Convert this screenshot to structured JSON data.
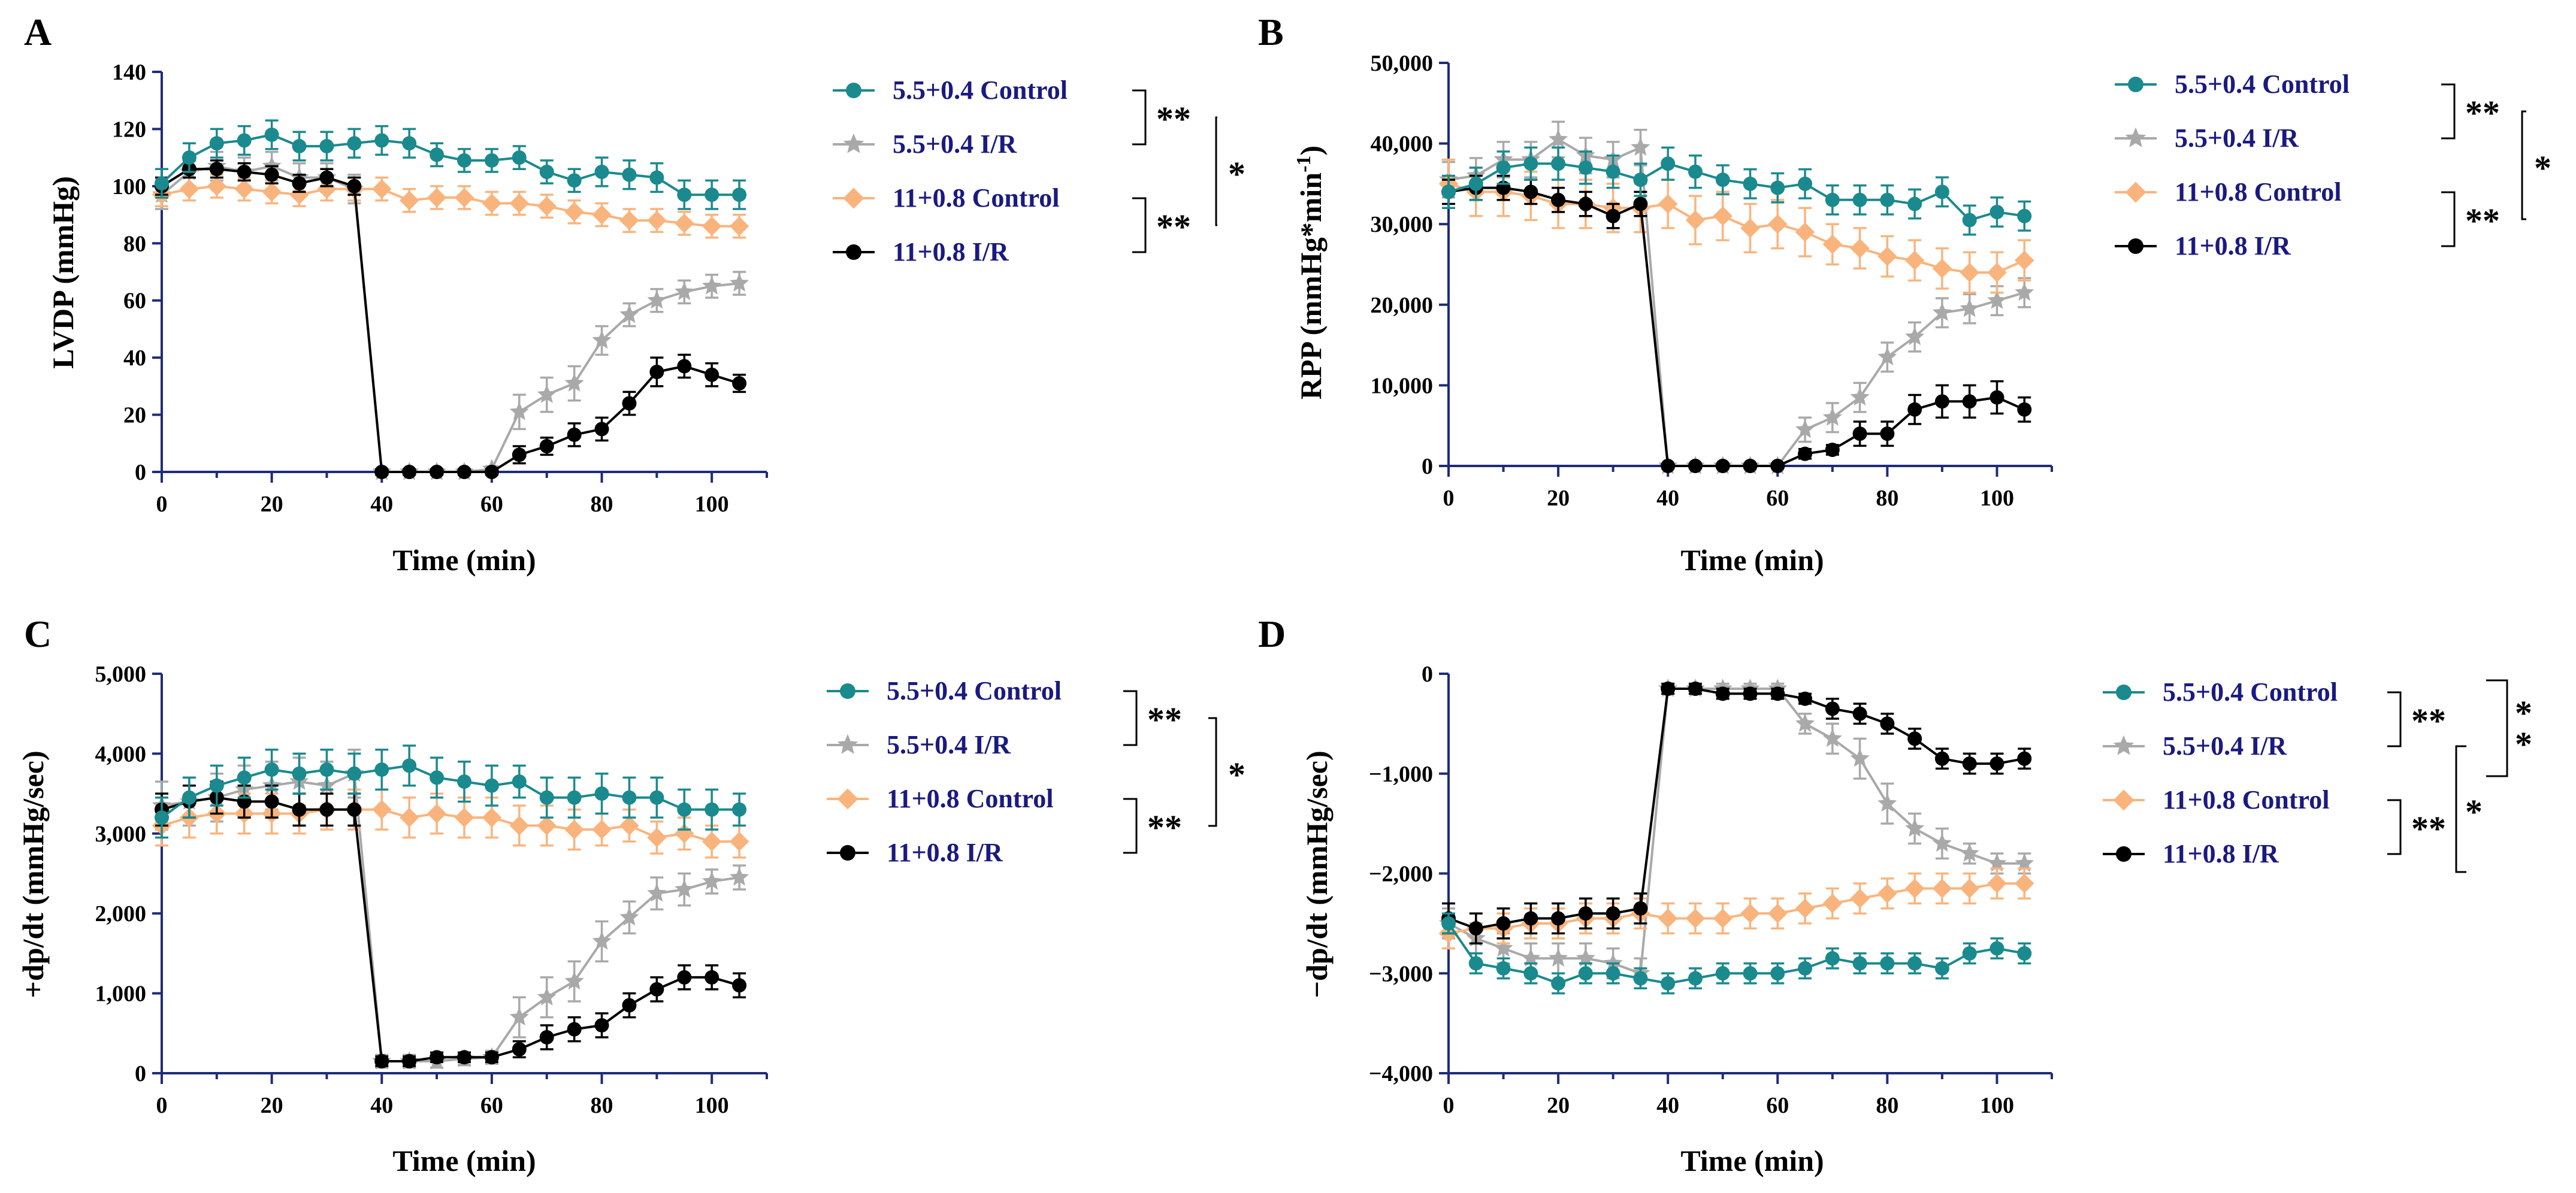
{
  "series_styles": [
    {
      "color": "#1a8a8e",
      "marker": "circle"
    },
    {
      "color": "#a9a9a9",
      "marker": "star"
    },
    {
      "color": "#f9b47d",
      "marker": "diamond"
    },
    {
      "color": "#000000",
      "marker": "circle"
    }
  ],
  "chart_data": [
    {
      "panel": "A",
      "type": "line",
      "title": "",
      "xlabel": "Time (min)",
      "ylabel": "LVDP (mmHg)",
      "xlim": [
        0,
        110
      ],
      "ylim": [
        0,
        140
      ],
      "xticks": [
        0,
        20,
        40,
        60,
        80,
        100
      ],
      "yticks": [
        0,
        20,
        40,
        60,
        80,
        100,
        120,
        140
      ],
      "ytick_labels": [
        "0",
        "20",
        "40",
        "60",
        "80",
        "100",
        "120",
        "140"
      ],
      "x": [
        0,
        5,
        10,
        15,
        20,
        25,
        30,
        35,
        40,
        45,
        50,
        55,
        60,
        65,
        70,
        75,
        80,
        85,
        90,
        95,
        100,
        105
      ],
      "series": [
        {
          "name": "5.5+0.4 Control",
          "values": [
            101,
            110,
            115,
            116,
            118,
            114,
            114,
            115,
            116,
            115,
            111,
            109,
            109,
            110,
            105,
            102,
            105,
            104,
            103,
            97,
            97,
            97
          ],
          "errors": [
            5,
            5,
            5,
            5,
            5,
            5,
            5,
            5,
            5,
            5,
            4,
            4,
            4,
            4,
            4,
            4,
            5,
            5,
            5,
            5,
            5,
            5
          ]
        },
        {
          "name": "5.5+0.4 I/R",
          "values": [
            97,
            105,
            107,
            105,
            107,
            103,
            103,
            99,
            0,
            0,
            0,
            0,
            1,
            21,
            27,
            31,
            46,
            55,
            60,
            63,
            65,
            66
          ],
          "errors": [
            5,
            5,
            5,
            5,
            5,
            5,
            5,
            5,
            1,
            1,
            1,
            1,
            1,
            6,
            6,
            6,
            5,
            4,
            4,
            4,
            4,
            4
          ]
        },
        {
          "name": "11+0.8 Control",
          "values": [
            97,
            99,
            100,
            99,
            98,
            97,
            99,
            99,
            99,
            95,
            96,
            96,
            94,
            94,
            93,
            91,
            90,
            88,
            88,
            87,
            86,
            86
          ],
          "errors": [
            4,
            4,
            4,
            4,
            4,
            4,
            4,
            4,
            4,
            4,
            4,
            4,
            4,
            4,
            4,
            4,
            4,
            4,
            4,
            4,
            4,
            4
          ]
        },
        {
          "name": "11+0.8 I/R",
          "values": [
            100,
            106,
            106,
            105,
            104,
            101,
            103,
            100,
            0,
            0,
            0,
            0,
            0,
            6,
            9,
            13,
            15,
            24,
            35,
            37,
            34,
            31
          ],
          "errors": [
            3,
            3,
            3,
            3,
            3,
            3,
            3,
            3,
            1,
            1,
            1,
            1,
            1,
            3,
            3,
            4,
            4,
            4,
            5,
            4,
            4,
            3
          ]
        }
      ],
      "legend": [
        "5.5+0.4 Control",
        "5.5+0.4 I/R",
        "11+0.8 Control",
        "11+0.8 I/R"
      ],
      "significance": [
        {
          "between": "5.5+0.4 Control vs 5.5+0.4 I/R",
          "label": "**"
        },
        {
          "between": "11+0.8 Control vs 11+0.8 I/R",
          "label": "**"
        },
        {
          "between": "5.5+0.4 I/R vs 11+0.8 I/R",
          "label": "*"
        }
      ]
    },
    {
      "panel": "B",
      "type": "line",
      "title": "",
      "xlabel": "Time (min)",
      "ylabel": "RPP (mmHg*min⁻¹)",
      "xlim": [
        0,
        110
      ],
      "ylim": [
        0,
        50000
      ],
      "xticks": [
        0,
        20,
        40,
        60,
        80,
        100
      ],
      "yticks": [
        0,
        10000,
        20000,
        30000,
        40000,
        50000
      ],
      "ytick_labels": [
        "0",
        "10,000",
        "20,000",
        "30,000",
        "40,000",
        "50,000"
      ],
      "x": [
        0,
        5,
        10,
        15,
        20,
        25,
        30,
        35,
        40,
        45,
        50,
        55,
        60,
        65,
        70,
        75,
        80,
        85,
        90,
        95,
        100,
        105
      ],
      "series": [
        {
          "name": "5.5+0.4 Control",
          "values": [
            34000,
            35000,
            37000,
            37500,
            37500,
            37000,
            36500,
            35500,
            37500,
            36500,
            35500,
            35000,
            34500,
            35000,
            33000,
            33000,
            33000,
            32500,
            34000,
            30500,
            31500,
            31000
          ],
          "errors": [
            2000,
            2000,
            2000,
            2000,
            2000,
            2000,
            2000,
            2000,
            2000,
            2000,
            1800,
            1800,
            1800,
            1800,
            1800,
            1800,
            1800,
            1800,
            1800,
            1800,
            1800,
            1800
          ]
        },
        {
          "name": "5.5+0.4 I/R",
          "values": [
            35500,
            36000,
            38000,
            38000,
            40500,
            38500,
            38000,
            39500,
            0,
            0,
            0,
            0,
            0,
            4500,
            6000,
            8500,
            13500,
            16000,
            19000,
            19500,
            20500,
            21500
          ],
          "errors": [
            2200,
            2200,
            2200,
            2200,
            2200,
            2200,
            2200,
            2200,
            300,
            300,
            300,
            300,
            300,
            1500,
            1800,
            1800,
            1800,
            1800,
            1800,
            1800,
            1800,
            1800
          ]
        },
        {
          "name": "11+0.8 Control",
          "values": [
            35000,
            34000,
            34000,
            33500,
            32500,
            32500,
            32000,
            32000,
            32500,
            30500,
            31000,
            29500,
            30000,
            29000,
            27500,
            27000,
            26000,
            25500,
            24500,
            24000,
            24000,
            25500
          ],
          "errors": [
            3000,
            3000,
            3000,
            3000,
            3000,
            3000,
            3000,
            3000,
            3000,
            3000,
            3000,
            3000,
            3000,
            3000,
            2500,
            2500,
            2500,
            2500,
            2500,
            2500,
            2500,
            2500
          ]
        },
        {
          "name": "11+0.8 I/R",
          "values": [
            34000,
            34500,
            34500,
            34000,
            33000,
            32500,
            31000,
            32500,
            0,
            0,
            0,
            0,
            0,
            1500,
            2000,
            4000,
            4000,
            7000,
            8000,
            8000,
            8500,
            7000
          ],
          "errors": [
            1500,
            1500,
            1500,
            1500,
            1500,
            1500,
            1500,
            1500,
            200,
            200,
            200,
            200,
            200,
            600,
            600,
            1500,
            1500,
            1800,
            2000,
            2000,
            2000,
            1500
          ]
        }
      ],
      "legend": [
        "5.5+0.4 Control",
        "5.5+0.4 I/R",
        "11+0.8 Control",
        "11+0.8 I/R"
      ],
      "significance": [
        {
          "between": "5.5+0.4 Control vs 5.5+0.4 I/R",
          "label": "**"
        },
        {
          "between": "11+0.8 Control vs 11+0.8 I/R",
          "label": "**"
        },
        {
          "between": "5.5+0.4 I/R vs 11+0.8 I/R",
          "label": "*"
        }
      ]
    },
    {
      "panel": "C",
      "type": "line",
      "title": "",
      "xlabel": "Time (min)",
      "ylabel": "+dp/dt (mmHg/sec)",
      "xlim": [
        0,
        110
      ],
      "ylim": [
        0,
        5000
      ],
      "xticks": [
        0,
        20,
        40,
        60,
        80,
        100
      ],
      "yticks": [
        0,
        1000,
        2000,
        3000,
        4000,
        5000
      ],
      "ytick_labels": [
        "0",
        "1,000",
        "2,000",
        "3,000",
        "4,000",
        "5,000"
      ],
      "x": [
        0,
        5,
        10,
        15,
        20,
        25,
        30,
        35,
        40,
        45,
        50,
        55,
        60,
        65,
        70,
        75,
        80,
        85,
        90,
        95,
        100,
        105
      ],
      "series": [
        {
          "name": "5.5+0.4 Control",
          "values": [
            3200,
            3450,
            3600,
            3700,
            3800,
            3750,
            3800,
            3750,
            3800,
            3850,
            3700,
            3650,
            3600,
            3650,
            3450,
            3450,
            3500,
            3450,
            3450,
            3300,
            3300,
            3300
          ],
          "errors": [
            250,
            250,
            250,
            250,
            250,
            250,
            250,
            250,
            250,
            250,
            250,
            250,
            250,
            200,
            250,
            250,
            250,
            250,
            250,
            250,
            250,
            200
          ]
        },
        {
          "name": "5.5+0.4 I/R",
          "values": [
            3350,
            3400,
            3450,
            3550,
            3600,
            3650,
            3600,
            3750,
            150,
            150,
            150,
            180,
            200,
            700,
            950,
            1150,
            1650,
            1950,
            2250,
            2300,
            2400,
            2450
          ],
          "errors": [
            300,
            300,
            300,
            300,
            300,
            300,
            300,
            300,
            80,
            80,
            80,
            80,
            80,
            250,
            250,
            250,
            250,
            200,
            200,
            200,
            150,
            150
          ]
        },
        {
          "name": "11+0.8 Control",
          "values": [
            3100,
            3200,
            3250,
            3250,
            3250,
            3250,
            3300,
            3300,
            3300,
            3200,
            3250,
            3200,
            3200,
            3100,
            3100,
            3050,
            3050,
            3100,
            2950,
            3000,
            2900,
            2900
          ],
          "errors": [
            250,
            250,
            250,
            250,
            250,
            250,
            250,
            250,
            250,
            250,
            250,
            250,
            250,
            250,
            250,
            250,
            200,
            200,
            200,
            200,
            200,
            200
          ]
        },
        {
          "name": "11+0.8 I/R",
          "values": [
            3300,
            3400,
            3450,
            3400,
            3400,
            3300,
            3300,
            3300,
            150,
            150,
            200,
            200,
            200,
            300,
            450,
            550,
            600,
            850,
            1050,
            1200,
            1200,
            1100
          ],
          "errors": [
            200,
            200,
            200,
            200,
            200,
            200,
            200,
            200,
            60,
            60,
            60,
            60,
            60,
            100,
            150,
            150,
            150,
            150,
            150,
            150,
            150,
            150
          ]
        }
      ],
      "legend": [
        "5.5+0.4 Control",
        "5.5+0.4 I/R",
        "11+0.8 Control",
        "11+0.8 I/R"
      ],
      "significance": [
        {
          "between": "5.5+0.4 Control vs 5.5+0.4 I/R",
          "label": "**"
        },
        {
          "between": "11+0.8 Control vs 11+0.8 I/R",
          "label": "**"
        },
        {
          "between": "5.5+0.4 I/R vs 11+0.8 I/R",
          "label": "*"
        }
      ]
    },
    {
      "panel": "D",
      "type": "line",
      "title": "",
      "xlabel": "Time (min)",
      "ylabel": "−dp/dt (mmHg/sec)",
      "xlim": [
        0,
        110
      ],
      "ylim": [
        -4000,
        0
      ],
      "xticks": [
        0,
        20,
        40,
        60,
        80,
        100
      ],
      "yticks": [
        -4000,
        -3000,
        -2000,
        -1000,
        0
      ],
      "ytick_labels": [
        "−4,000",
        "−3,000",
        "−2,000",
        "−1,000",
        "0"
      ],
      "x": [
        0,
        5,
        10,
        15,
        20,
        25,
        30,
        35,
        40,
        45,
        50,
        55,
        60,
        65,
        70,
        75,
        80,
        85,
        90,
        95,
        100,
        105
      ],
      "series": [
        {
          "name": "5.5+0.4 Control",
          "values": [
            -2500,
            -2900,
            -2950,
            -3000,
            -3100,
            -3000,
            -3000,
            -3050,
            -3100,
            -3050,
            -3000,
            -3000,
            -3000,
            -2950,
            -2850,
            -2900,
            -2900,
            -2900,
            -2950,
            -2800,
            -2750,
            -2800
          ],
          "errors": [
            100,
            100,
            100,
            100,
            100,
            100,
            100,
            100,
            100,
            100,
            100,
            100,
            100,
            100,
            100,
            100,
            100,
            100,
            100,
            100,
            100,
            100
          ]
        },
        {
          "name": "5.5+0.4 I/R",
          "values": [
            -2500,
            -2650,
            -2750,
            -2850,
            -2850,
            -2850,
            -2900,
            -3000,
            -150,
            -150,
            -150,
            -150,
            -150,
            -500,
            -650,
            -850,
            -1300,
            -1550,
            -1700,
            -1800,
            -1900,
            -1900
          ],
          "errors": [
            150,
            150,
            150,
            150,
            150,
            150,
            150,
            150,
            50,
            50,
            50,
            50,
            50,
            100,
            150,
            200,
            200,
            150,
            150,
            100,
            100,
            100
          ]
        },
        {
          "name": "11+0.8 Control",
          "values": [
            -2600,
            -2550,
            -2550,
            -2500,
            -2500,
            -2450,
            -2450,
            -2400,
            -2450,
            -2450,
            -2450,
            -2400,
            -2400,
            -2350,
            -2300,
            -2250,
            -2200,
            -2150,
            -2150,
            -2150,
            -2100,
            -2100
          ],
          "errors": [
            150,
            150,
            150,
            150,
            150,
            150,
            150,
            150,
            150,
            150,
            150,
            150,
            150,
            150,
            150,
            150,
            150,
            150,
            150,
            150,
            150,
            150
          ]
        },
        {
          "name": "11+0.8 I/R",
          "values": [
            -2450,
            -2550,
            -2500,
            -2450,
            -2450,
            -2400,
            -2400,
            -2350,
            -150,
            -150,
            -200,
            -200,
            -200,
            -250,
            -350,
            -400,
            -500,
            -650,
            -850,
            -900,
            -900,
            -850
          ],
          "errors": [
            150,
            150,
            150,
            150,
            150,
            150,
            150,
            150,
            50,
            50,
            50,
            50,
            50,
            50,
            100,
            100,
            100,
            100,
            100,
            100,
            100,
            100
          ]
        }
      ],
      "legend": [
        "5.5+0.4 Control",
        "5.5+0.4 I/R",
        "11+0.8 Control",
        "11+0.8 I/R"
      ],
      "significance": [
        {
          "between": "5.5+0.4 Control vs 5.5+0.4 I/R",
          "label": "**"
        },
        {
          "between": "11+0.8 Control vs 11+0.8 I/R",
          "label": "**"
        },
        {
          "between": "5.5+0.4 I/R vs 11+0.8 I/R",
          "label": "*"
        },
        {
          "between": "5.5+0.4 Control vs 11+0.8 I/R",
          "label": "**"
        }
      ]
    }
  ]
}
